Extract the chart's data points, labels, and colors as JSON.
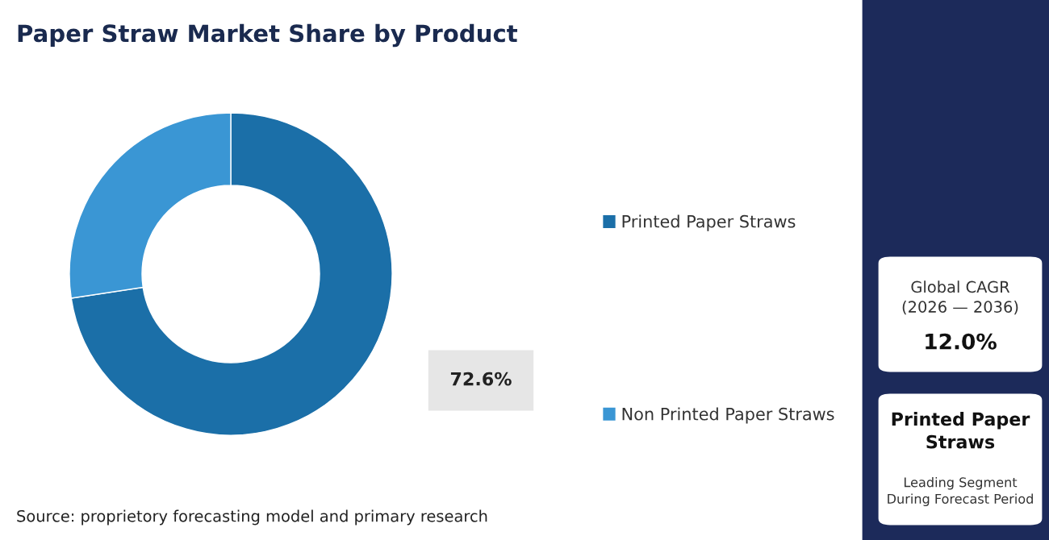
{
  "chart_data": {
    "type": "donut",
    "title": "Paper Straw Market Share by Product",
    "categories": [
      "Printed Paper Straws",
      "Non Printed Paper Straws"
    ],
    "values": [
      72.6,
      27.4
    ],
    "colors": [
      "#1b6fa8",
      "#3a96d4"
    ],
    "value_labels": [
      "72.6%",
      null
    ],
    "legend": "right",
    "annotations": [
      "Source: proprietory forecasting model and primary research",
      "Global CAGR\n(2026 — 2036)",
      "12.0%",
      "Printed Paper\nStraws",
      "Leading Segment\nDuring Forecast Period"
    ]
  }
}
